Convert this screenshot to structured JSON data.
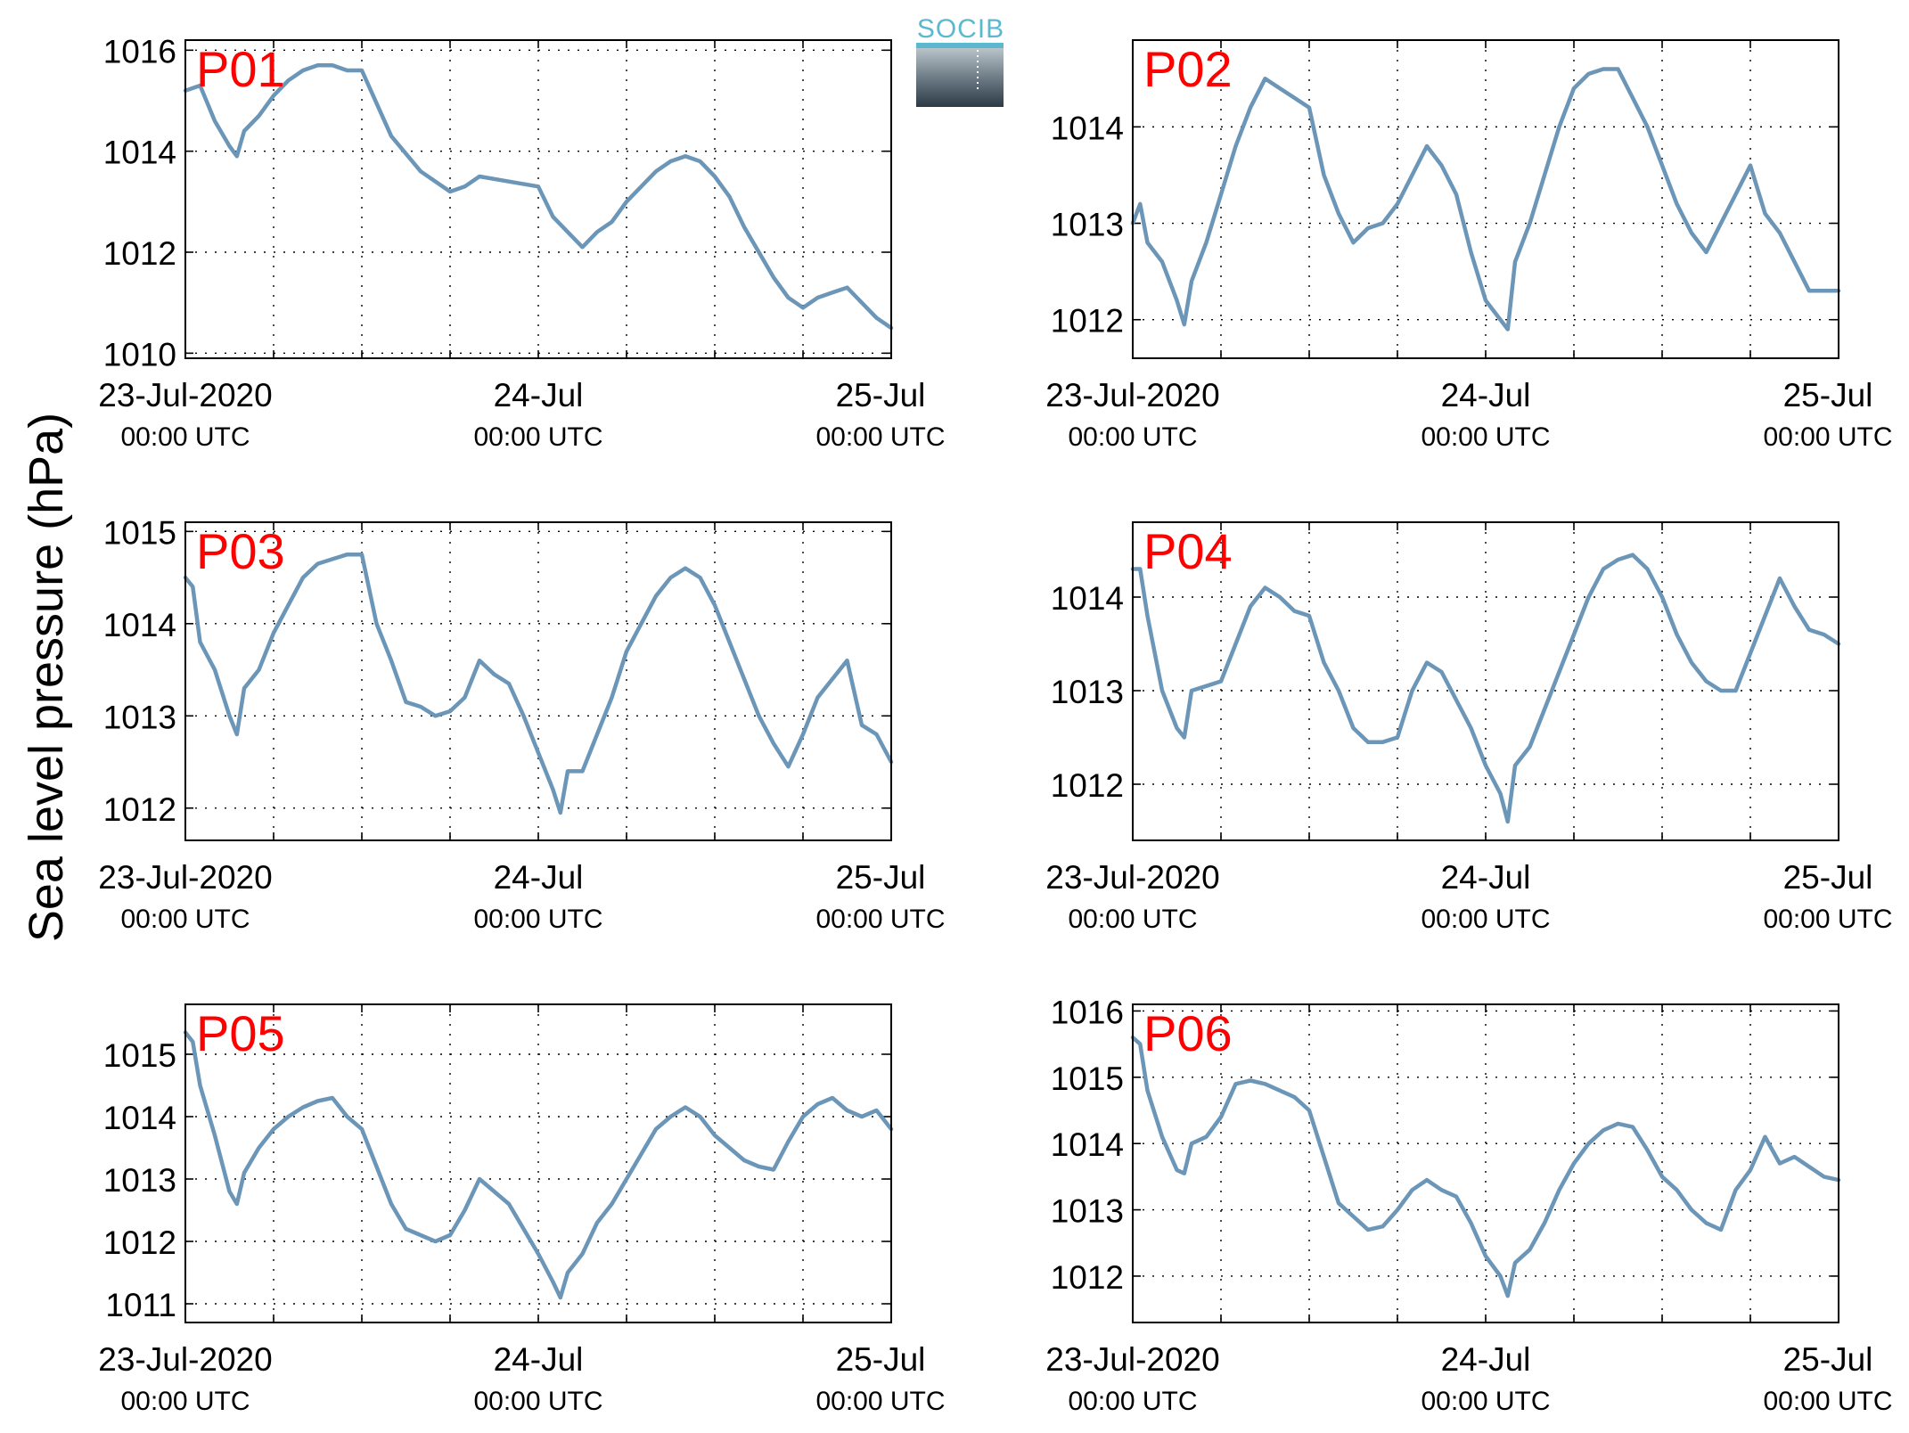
{
  "figure": {
    "ylabel": "Sea level pressure (hPa)",
    "logo_text": "SOCIB",
    "line_color": "#6b96b8",
    "label_color": "#ff0000",
    "x_ticks": [
      {
        "t": 0,
        "date": "23-Jul-2020",
        "time": "00:00 UTC"
      },
      {
        "t": 24,
        "date": "24-Jul",
        "time": "00:00 UTC"
      },
      {
        "t": 48,
        "date": "25-Jul",
        "time": "00:00 UTC"
      }
    ],
    "x_gridlines_hours": [
      6,
      12,
      18,
      24,
      30,
      36,
      42
    ]
  },
  "chart_data": [
    {
      "type": "line",
      "label": "P01",
      "x_unit": "hours since 23-Jul-2020 00:00 UTC",
      "xlim": [
        0,
        48
      ],
      "ylim": [
        1009.9,
        1016.2
      ],
      "yticks": [
        1010,
        1012,
        1014,
        1016
      ],
      "grid": true,
      "x": [
        0,
        1,
        2,
        3,
        3.5,
        4,
        5,
        6,
        7,
        8,
        9,
        10,
        11,
        12,
        14,
        16,
        18,
        19,
        20,
        22,
        24,
        25,
        26,
        27,
        28,
        29,
        30,
        31,
        32,
        33,
        34,
        35,
        36,
        37,
        38,
        39,
        40,
        41,
        42,
        43,
        44,
        45,
        46,
        47,
        48
      ],
      "values": [
        1015.2,
        1015.3,
        1014.6,
        1014.1,
        1013.9,
        1014.4,
        1014.7,
        1015.1,
        1015.4,
        1015.6,
        1015.7,
        1015.7,
        1015.6,
        1015.6,
        1014.3,
        1013.6,
        1013.2,
        1013.3,
        1013.5,
        1013.4,
        1013.3,
        1012.7,
        1012.4,
        1012.1,
        1012.4,
        1012.6,
        1013.0,
        1013.3,
        1013.6,
        1013.8,
        1013.9,
        1013.8,
        1013.5,
        1013.1,
        1012.5,
        1012.0,
        1011.5,
        1011.1,
        1010.9,
        1011.1,
        1011.2,
        1011.3,
        1011.0,
        1010.7,
        1010.5
      ]
    },
    {
      "type": "line",
      "label": "P02",
      "x_unit": "hours since 23-Jul-2020 00:00 UTC",
      "xlim": [
        0,
        48
      ],
      "ylim": [
        1011.6,
        1014.9
      ],
      "yticks": [
        1012,
        1013,
        1014
      ],
      "grid": true,
      "x": [
        0,
        0.5,
        1,
        2,
        3,
        3.5,
        4,
        5,
        6,
        7,
        8,
        9,
        10,
        11,
        12,
        13,
        14,
        15,
        16,
        17,
        18,
        19,
        20,
        21,
        22,
        23,
        24,
        25,
        25.5,
        26,
        27,
        28,
        29,
        30,
        31,
        32,
        33,
        34,
        35,
        36,
        37,
        38,
        39,
        40,
        41,
        42,
        43,
        44,
        45,
        46,
        47,
        48
      ],
      "values": [
        1013.0,
        1013.2,
        1012.8,
        1012.6,
        1012.2,
        1011.95,
        1012.4,
        1012.8,
        1013.3,
        1013.8,
        1014.2,
        1014.5,
        1014.4,
        1014.3,
        1014.2,
        1013.5,
        1013.1,
        1012.8,
        1012.95,
        1013.0,
        1013.2,
        1013.5,
        1013.8,
        1013.6,
        1013.3,
        1012.7,
        1012.2,
        1012.0,
        1011.9,
        1012.6,
        1013.0,
        1013.5,
        1014.0,
        1014.4,
        1014.55,
        1014.6,
        1014.6,
        1014.3,
        1014.0,
        1013.6,
        1013.2,
        1012.9,
        1012.7,
        1013.0,
        1013.3,
        1013.6,
        1013.1,
        1012.9,
        1012.6,
        1012.3,
        1012.3,
        1012.3
      ]
    },
    {
      "type": "line",
      "label": "P03",
      "x_unit": "hours since 23-Jul-2020 00:00 UTC",
      "xlim": [
        0,
        48
      ],
      "ylim": [
        1011.65,
        1015.1
      ],
      "yticks": [
        1012,
        1013,
        1014,
        1015
      ],
      "grid": true,
      "x": [
        0,
        0.5,
        1,
        2,
        3,
        3.5,
        4,
        5,
        6,
        7,
        8,
        9,
        10,
        11,
        12,
        13,
        14,
        15,
        16,
        17,
        18,
        19,
        20,
        21,
        22,
        23,
        24,
        25,
        25.5,
        26,
        27,
        28,
        29,
        30,
        31,
        32,
        33,
        34,
        35,
        36,
        37,
        38,
        39,
        40,
        41,
        42,
        43,
        44,
        45,
        46,
        47,
        48
      ],
      "values": [
        1014.5,
        1014.4,
        1013.8,
        1013.5,
        1013.0,
        1012.8,
        1013.3,
        1013.5,
        1013.9,
        1014.2,
        1014.5,
        1014.65,
        1014.7,
        1014.75,
        1014.75,
        1014.0,
        1013.6,
        1013.15,
        1013.1,
        1013.0,
        1013.05,
        1013.2,
        1013.6,
        1013.45,
        1013.35,
        1013.0,
        1012.6,
        1012.2,
        1011.95,
        1012.4,
        1012.4,
        1012.8,
        1013.2,
        1013.7,
        1014.0,
        1014.3,
        1014.5,
        1014.6,
        1014.5,
        1014.2,
        1013.8,
        1013.4,
        1013.0,
        1012.7,
        1012.45,
        1012.8,
        1013.2,
        1013.4,
        1013.6,
        1012.9,
        1012.8,
        1012.5
      ]
    },
    {
      "type": "line",
      "label": "P04",
      "x_unit": "hours since 23-Jul-2020 00:00 UTC",
      "xlim": [
        0,
        48
      ],
      "ylim": [
        1011.4,
        1014.8
      ],
      "yticks": [
        1012,
        1013,
        1014
      ],
      "grid": true,
      "x": [
        0,
        0.5,
        1,
        2,
        3,
        3.5,
        4,
        5,
        6,
        7,
        8,
        9,
        10,
        11,
        12,
        13,
        14,
        15,
        16,
        17,
        18,
        19,
        20,
        21,
        22,
        23,
        24,
        25,
        25.5,
        26,
        27,
        28,
        29,
        30,
        31,
        32,
        33,
        34,
        35,
        36,
        37,
        38,
        39,
        40,
        41,
        42,
        43,
        44,
        45,
        46,
        47,
        48
      ],
      "values": [
        1014.3,
        1014.3,
        1013.8,
        1013.0,
        1012.6,
        1012.5,
        1013.0,
        1013.05,
        1013.1,
        1013.5,
        1013.9,
        1014.1,
        1014.0,
        1013.85,
        1013.8,
        1013.3,
        1013.0,
        1012.6,
        1012.45,
        1012.45,
        1012.5,
        1013.0,
        1013.3,
        1013.2,
        1012.9,
        1012.6,
        1012.2,
        1011.9,
        1011.6,
        1012.2,
        1012.4,
        1012.8,
        1013.2,
        1013.6,
        1014.0,
        1014.3,
        1014.4,
        1014.45,
        1014.3,
        1014.0,
        1013.6,
        1013.3,
        1013.1,
        1013.0,
        1013.0,
        1013.4,
        1013.8,
        1014.2,
        1013.9,
        1013.65,
        1013.6,
        1013.5
      ]
    },
    {
      "type": "line",
      "label": "P05",
      "x_unit": "hours since 23-Jul-2020 00:00 UTC",
      "xlim": [
        0,
        48
      ],
      "ylim": [
        1010.7,
        1015.8
      ],
      "yticks": [
        1011,
        1012,
        1013,
        1014,
        1015
      ],
      "grid": true,
      "x": [
        0,
        0.5,
        1,
        2,
        3,
        3.5,
        4,
        5,
        6,
        7,
        8,
        9,
        10,
        11,
        12,
        13,
        14,
        15,
        16,
        17,
        18,
        19,
        20,
        21,
        22,
        23,
        24,
        25,
        25.5,
        26,
        27,
        28,
        29,
        30,
        31,
        32,
        33,
        34,
        35,
        36,
        37,
        38,
        39,
        40,
        41,
        42,
        43,
        44,
        45,
        46,
        47,
        48
      ],
      "values": [
        1015.35,
        1015.2,
        1014.5,
        1013.7,
        1012.8,
        1012.6,
        1013.1,
        1013.5,
        1013.8,
        1014.0,
        1014.15,
        1014.25,
        1014.3,
        1014.0,
        1013.8,
        1013.2,
        1012.6,
        1012.2,
        1012.1,
        1012.0,
        1012.1,
        1012.5,
        1013.0,
        1012.8,
        1012.6,
        1012.2,
        1011.8,
        1011.35,
        1011.1,
        1011.5,
        1011.8,
        1012.3,
        1012.6,
        1013.0,
        1013.4,
        1013.8,
        1014.0,
        1014.15,
        1014.0,
        1013.7,
        1013.5,
        1013.3,
        1013.2,
        1013.15,
        1013.6,
        1014.0,
        1014.2,
        1014.3,
        1014.1,
        1014.0,
        1014.1,
        1013.8
      ]
    },
    {
      "type": "line",
      "label": "P06",
      "x_unit": "hours since 23-Jul-2020 00:00 UTC",
      "xlim": [
        0,
        48
      ],
      "ylim": [
        1011.3,
        1016.1
      ],
      "yticks": [
        1012,
        1013,
        1014,
        1015,
        1016
      ],
      "grid": true,
      "x": [
        0,
        0.5,
        1,
        2,
        3,
        3.5,
        4,
        5,
        6,
        7,
        8,
        9,
        10,
        11,
        12,
        13,
        14,
        15,
        16,
        17,
        18,
        19,
        20,
        21,
        22,
        23,
        24,
        25,
        25.5,
        26,
        27,
        28,
        29,
        30,
        31,
        32,
        33,
        34,
        35,
        36,
        37,
        38,
        39,
        40,
        41,
        42,
        43,
        44,
        45,
        46,
        47,
        48
      ],
      "values": [
        1015.6,
        1015.5,
        1014.8,
        1014.1,
        1013.6,
        1013.55,
        1014.0,
        1014.1,
        1014.4,
        1014.9,
        1014.95,
        1014.9,
        1014.8,
        1014.7,
        1014.5,
        1013.8,
        1013.1,
        1012.9,
        1012.7,
        1012.75,
        1013.0,
        1013.3,
        1013.45,
        1013.3,
        1013.2,
        1012.8,
        1012.3,
        1012.0,
        1011.7,
        1012.2,
        1012.4,
        1012.8,
        1013.3,
        1013.7,
        1014.0,
        1014.2,
        1014.3,
        1014.25,
        1013.9,
        1013.5,
        1013.3,
        1013.0,
        1012.8,
        1012.7,
        1013.3,
        1013.6,
        1014.1,
        1013.7,
        1013.8,
        1013.65,
        1013.5,
        1013.45
      ]
    }
  ]
}
